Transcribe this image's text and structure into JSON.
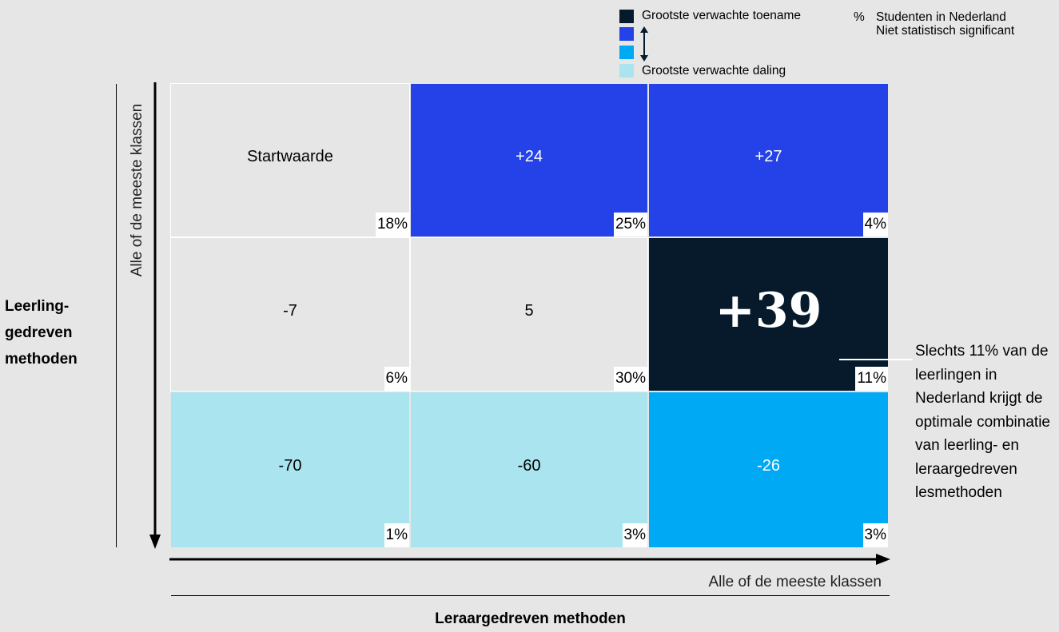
{
  "colors": {
    "background": "#e6e6e6",
    "neutral": "#e6e6e6",
    "largest_increase": "#061a2c",
    "increase": "#2442e8",
    "decrease": "#00a9f4",
    "largest_decrease": "#aae4ee"
  },
  "legend": {
    "largest_increase": "Grootste verwachte toename",
    "largest_decrease": "Grootste verwachte daling",
    "pct_symbol": "%",
    "pct_label": "Studenten in Nederland",
    "not_significant": "Niet statistisch significant"
  },
  "chart_data": {
    "type": "heatmap",
    "row_axis": {
      "title": "Leerling-gedreven methoden",
      "title_lines": [
        "Leerling-",
        "gedreven",
        "methoden"
      ],
      "direction_label": "Alle of de meeste klassen"
    },
    "col_axis": {
      "title": "Leraargedreven methoden",
      "direction_label": "Alle of de meeste klassen"
    },
    "cells": [
      [
        {
          "value": "Startwaarde",
          "pct": "18%",
          "category": "neutral"
        },
        {
          "value": "+24",
          "pct": "25%",
          "category": "increase"
        },
        {
          "value": "+27",
          "pct": "4%",
          "category": "increase"
        }
      ],
      [
        {
          "value": "-7",
          "pct": "6%",
          "category": "neutral"
        },
        {
          "value": "5",
          "pct": "30%",
          "category": "neutral"
        },
        {
          "value": "+39",
          "pct": "11%",
          "category": "largest_increase"
        }
      ],
      [
        {
          "value": "-70",
          "pct": "1%",
          "category": "largest_decrease"
        },
        {
          "value": "-60",
          "pct": "3%",
          "category": "largest_decrease"
        },
        {
          "value": "-26",
          "pct": "3%",
          "category": "decrease"
        }
      ]
    ],
    "annotation": "Slechts 11% van de leerlingen in Nederland krijgt de optimale combinatie van leerling- en leraargedreven lesmethoden"
  }
}
